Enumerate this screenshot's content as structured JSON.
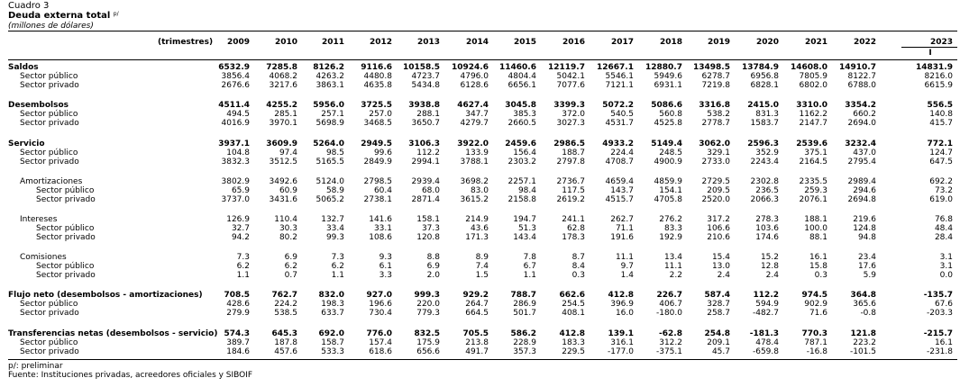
{
  "header": {
    "label": "Cuadro 3",
    "title": "Deuda externa total",
    "title_note": "p/",
    "subtitle": "(millones de dólares)"
  },
  "columns": {
    "stub": "(trimestres)",
    "years": [
      "2009",
      "2010",
      "2011",
      "2012",
      "2013",
      "2014",
      "2015",
      "2016",
      "2017",
      "2018",
      "2019",
      "2020",
      "2021",
      "2022",
      "2023"
    ],
    "sub_last": "I"
  },
  "rows": [
    {
      "label": "Saldos",
      "bold": true,
      "indent": 0,
      "values": [
        "6532.9",
        "7285.8",
        "8126.2",
        "9116.6",
        "10158.5",
        "10924.6",
        "11460.6",
        "12119.7",
        "12667.1",
        "12880.7",
        "13498.5",
        "13784.9",
        "14608.0",
        "14910.7",
        "14831.9"
      ]
    },
    {
      "label": "Sector público",
      "indent": 1,
      "values": [
        "3856.4",
        "4068.2",
        "4263.2",
        "4480.8",
        "4723.7",
        "4796.0",
        "4804.4",
        "5042.1",
        "5546.1",
        "5949.6",
        "6278.7",
        "6956.8",
        "7805.9",
        "8122.7",
        "8216.0"
      ]
    },
    {
      "label": "Sector privado",
      "indent": 1,
      "values": [
        "2676.6",
        "3217.6",
        "3863.1",
        "4635.8",
        "5434.8",
        "6128.6",
        "6656.1",
        "7077.6",
        "7121.1",
        "6931.1",
        "7219.8",
        "6828.1",
        "6802.0",
        "6788.0",
        "6615.9"
      ]
    },
    {
      "label": "Desembolsos",
      "bold": true,
      "indent": 0,
      "values": [
        "4511.4",
        "4255.2",
        "5956.0",
        "3725.5",
        "3938.8",
        "4627.4",
        "3045.8",
        "3399.3",
        "5072.2",
        "5086.6",
        "3316.8",
        "2415.0",
        "3310.0",
        "3354.2",
        "556.5"
      ]
    },
    {
      "label": "Sector público",
      "indent": 1,
      "values": [
        "494.5",
        "285.1",
        "257.1",
        "257.0",
        "288.1",
        "347.7",
        "385.3",
        "372.0",
        "540.5",
        "560.8",
        "538.2",
        "831.3",
        "1162.2",
        "660.2",
        "140.8"
      ]
    },
    {
      "label": "Sector privado",
      "indent": 1,
      "values": [
        "4016.9",
        "3970.1",
        "5698.9",
        "3468.5",
        "3650.7",
        "4279.7",
        "2660.5",
        "3027.3",
        "4531.7",
        "4525.8",
        "2778.7",
        "1583.7",
        "2147.7",
        "2694.0",
        "415.7"
      ]
    },
    {
      "label": "Servicio",
      "bold": true,
      "indent": 0,
      "values": [
        "3937.1",
        "3609.9",
        "5264.0",
        "2949.5",
        "3106.3",
        "3922.0",
        "2459.6",
        "2986.5",
        "4933.2",
        "5149.4",
        "3062.0",
        "2596.3",
        "2539.6",
        "3232.4",
        "772.1"
      ]
    },
    {
      "label": "Sector público",
      "indent": 1,
      "values": [
        "104.8",
        "97.4",
        "98.5",
        "99.6",
        "112.2",
        "133.9",
        "156.4",
        "188.7",
        "224.4",
        "248.5",
        "329.1",
        "352.9",
        "375.1",
        "437.0",
        "124.7"
      ]
    },
    {
      "label": "Sector privado",
      "indent": 1,
      "values": [
        "3832.3",
        "3512.5",
        "5165.5",
        "2849.9",
        "2994.1",
        "3788.1",
        "2303.2",
        "2797.8",
        "4708.7",
        "4900.9",
        "2733.0",
        "2243.4",
        "2164.5",
        "2795.4",
        "647.5"
      ]
    },
    {
      "label": "Amortizaciones",
      "indent": 1,
      "values": [
        "3802.9",
        "3492.6",
        "5124.0",
        "2798.5",
        "2939.4",
        "3698.2",
        "2257.1",
        "2736.7",
        "4659.4",
        "4859.9",
        "2729.5",
        "2302.8",
        "2335.5",
        "2989.4",
        "692.2"
      ]
    },
    {
      "label": "Sector público",
      "indent": 2,
      "values": [
        "65.9",
        "60.9",
        "58.9",
        "60.4",
        "68.0",
        "83.0",
        "98.4",
        "117.5",
        "143.7",
        "154.1",
        "209.5",
        "236.5",
        "259.3",
        "294.6",
        "73.2"
      ]
    },
    {
      "label": "Sector privado",
      "indent": 2,
      "values": [
        "3737.0",
        "3431.6",
        "5065.2",
        "2738.1",
        "2871.4",
        "3615.2",
        "2158.8",
        "2619.2",
        "4515.7",
        "4705.8",
        "2520.0",
        "2066.3",
        "2076.1",
        "2694.8",
        "619.0"
      ]
    },
    {
      "label": "Intereses",
      "indent": 1,
      "values": [
        "126.9",
        "110.4",
        "132.7",
        "141.6",
        "158.1",
        "214.9",
        "194.7",
        "241.1",
        "262.7",
        "276.2",
        "317.2",
        "278.3",
        "188.1",
        "219.6",
        "76.8"
      ]
    },
    {
      "label": "Sector público",
      "indent": 2,
      "values": [
        "32.7",
        "30.3",
        "33.4",
        "33.1",
        "37.3",
        "43.6",
        "51.3",
        "62.8",
        "71.1",
        "83.3",
        "106.6",
        "103.6",
        "100.0",
        "124.8",
        "48.4"
      ]
    },
    {
      "label": "Sector privado",
      "indent": 2,
      "values": [
        "94.2",
        "80.2",
        "99.3",
        "108.6",
        "120.8",
        "171.3",
        "143.4",
        "178.3",
        "191.6",
        "192.9",
        "210.6",
        "174.6",
        "88.1",
        "94.8",
        "28.4"
      ]
    },
    {
      "label": "Comisiones",
      "indent": 1,
      "values": [
        "7.3",
        "6.9",
        "7.3",
        "9.3",
        "8.8",
        "8.9",
        "7.8",
        "8.7",
        "11.1",
        "13.4",
        "15.4",
        "15.2",
        "16.1",
        "23.4",
        "3.1"
      ]
    },
    {
      "label": "Sector público",
      "indent": 2,
      "values": [
        "6.2",
        "6.2",
        "6.2",
        "6.1",
        "6.9",
        "7.4",
        "6.7",
        "8.4",
        "9.7",
        "11.1",
        "13.0",
        "12.8",
        "15.8",
        "17.6",
        "3.1"
      ]
    },
    {
      "label": "Sector privado",
      "indent": 2,
      "values": [
        "1.1",
        "0.7",
        "1.1",
        "3.3",
        "2.0",
        "1.5",
        "1.1",
        "0.3",
        "1.4",
        "2.2",
        "2.4",
        "2.4",
        "0.3",
        "5.9",
        "0.0"
      ]
    },
    {
      "label": "Flujo neto (desembolsos - amortizaciones)",
      "bold": true,
      "indent": 0,
      "values": [
        "708.5",
        "762.7",
        "832.0",
        "927.0",
        "999.3",
        "929.2",
        "788.7",
        "662.6",
        "412.8",
        "226.7",
        "587.4",
        "112.2",
        "974.5",
        "364.8",
        "-135.7"
      ]
    },
    {
      "label": "Sector público",
      "indent": 1,
      "values": [
        "428.6",
        "224.2",
        "198.3",
        "196.6",
        "220.0",
        "264.7",
        "286.9",
        "254.5",
        "396.9",
        "406.7",
        "328.7",
        "594.9",
        "902.9",
        "365.6",
        "67.6"
      ]
    },
    {
      "label": "Sector privado",
      "indent": 1,
      "values": [
        "279.9",
        "538.5",
        "633.7",
        "730.4",
        "779.3",
        "664.5",
        "501.7",
        "408.1",
        "16.0",
        "-180.0",
        "258.7",
        "-482.7",
        "71.6",
        "-0.8",
        "-203.3"
      ]
    },
    {
      "label": "Transferencias netas (desembolsos - servicio)",
      "bold": true,
      "indent": 0,
      "values": [
        "574.3",
        "645.3",
        "692.0",
        "776.0",
        "832.5",
        "705.5",
        "586.2",
        "412.8",
        "139.1",
        "-62.8",
        "254.8",
        "-181.3",
        "770.3",
        "121.8",
        "-215.7"
      ]
    },
    {
      "label": "Sector público",
      "indent": 1,
      "values": [
        "389.7",
        "187.8",
        "158.7",
        "157.4",
        "175.9",
        "213.8",
        "228.9",
        "183.3",
        "316.1",
        "312.2",
        "209.1",
        "478.4",
        "787.1",
        "223.2",
        "16.1"
      ]
    },
    {
      "label": "Sector privado",
      "indent": 1,
      "values": [
        "184.6",
        "457.6",
        "533.3",
        "618.6",
        "656.6",
        "491.7",
        "357.3",
        "229.5",
        "-177.0",
        "-375.1",
        "45.7",
        "-659.8",
        "-16.8",
        "-101.5",
        "-231.8"
      ]
    }
  ],
  "footer": {
    "note": "p/: preliminar",
    "source": "Fuente: Instituciones privadas, acreedores oficiales y SIBOIF"
  }
}
